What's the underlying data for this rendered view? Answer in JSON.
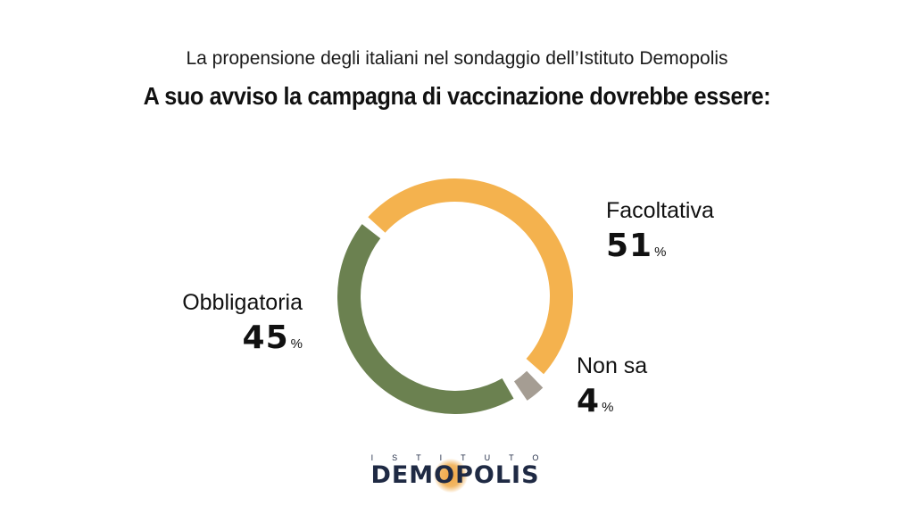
{
  "header": {
    "subtitle": "La propensione degli italiani nel sondaggio dell’Istituto Demopolis",
    "title": "A suo avviso la campagna di vaccinazione dovrebbe essere:"
  },
  "chart_data": {
    "type": "pie",
    "style": "donut",
    "title": "A suo avviso la campagna di vaccinazione dovrebbe essere:",
    "subtitle": "La propensione degli italiani nel sondaggio dell’Istituto Demopolis",
    "unit": "%",
    "slices": [
      {
        "label": "Facoltativa",
        "value": 51,
        "color": "#f4b24e",
        "exploded": false
      },
      {
        "label": "Non sa",
        "value": 4,
        "color": "#a59d93",
        "exploded": true
      },
      {
        "label": "Obbligatoria",
        "value": 45,
        "color": "#6b8150",
        "exploded": false
      }
    ]
  },
  "labels": {
    "facoltativa": {
      "name": "Facoltativa",
      "value": "51",
      "unit": "%"
    },
    "non_sa": {
      "name": "Non sa",
      "value": "4",
      "unit": "%"
    },
    "obbligatoria": {
      "name": "Obbligatoria",
      "value": "45",
      "unit": "%"
    }
  },
  "logo": {
    "top_text": "ISTITUTO",
    "main_text": "DEMOPOLIS",
    "colors": {
      "text": "#1f2a44",
      "glow": "#f2a541"
    }
  }
}
